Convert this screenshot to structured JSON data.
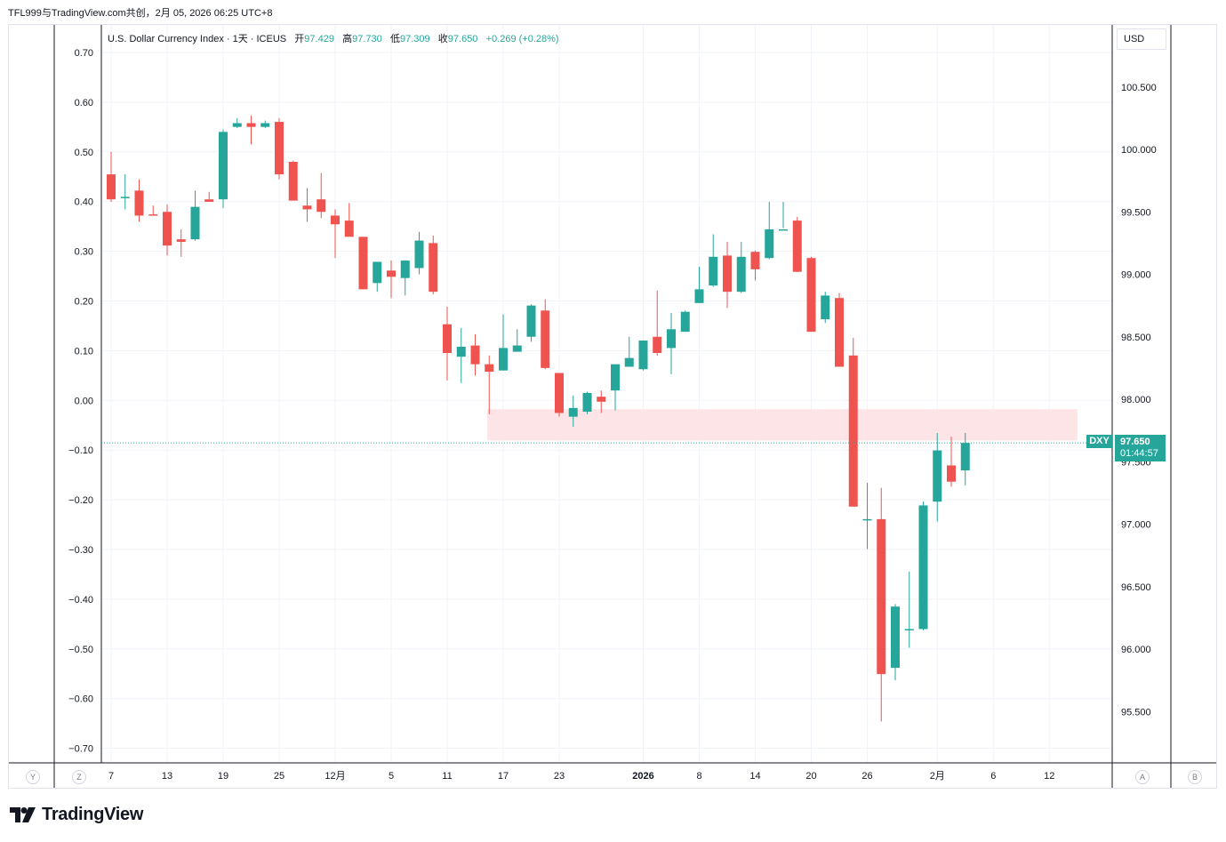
{
  "header": {
    "share_text": "TFL999与TradingView.com共创，2月 05, 2026 06:25 UTC+8"
  },
  "legend": {
    "title": "U.S. Dollar Currency Index · 1天 · ICEUS",
    "open_label": "开",
    "open": "97.429",
    "high_label": "高",
    "high": "97.730",
    "low_label": "低",
    "low": "97.309",
    "close_label": "收",
    "close": "97.650",
    "change": "+0.269 (+0.28%)"
  },
  "currency_button": "USD",
  "price_tag": {
    "symbol": "DXY",
    "price": "97.650",
    "countdown": "01:44:57"
  },
  "corner_buttons": {
    "y": "Y",
    "z": "Z",
    "a": "A",
    "b": "B"
  },
  "logo_text": "TradingView",
  "colors": {
    "up": "#26a69a",
    "down": "#ef5350",
    "zone": "#fde4e6",
    "grid": "#f0f3fa",
    "text": "#131722"
  },
  "chart_data": {
    "type": "candlestick",
    "symbol": "DXY",
    "title": "U.S. Dollar Currency Index",
    "interval": "1天",
    "exchange": "ICEUS",
    "right_axis": {
      "ticks": [
        "100.500",
        "100.000",
        "99.500",
        "99.000",
        "98.500",
        "98.000",
        "97.500",
        "97.000",
        "96.500",
        "96.000",
        "95.500"
      ],
      "ylim": [
        95.2,
        100.85
      ]
    },
    "left_axis": {
      "ticks": [
        "0.70",
        "0.60",
        "0.50",
        "0.40",
        "0.30",
        "0.20",
        "0.10",
        "0.00",
        "−0.10",
        "−0.20",
        "−0.30",
        "−0.40",
        "−0.50",
        "−0.60",
        "−0.70"
      ]
    },
    "x_ticks": [
      {
        "i": 0,
        "label": "7"
      },
      {
        "i": 4,
        "label": "13"
      },
      {
        "i": 8,
        "label": "19"
      },
      {
        "i": 12,
        "label": "25"
      },
      {
        "i": 16,
        "label": "12月"
      },
      {
        "i": 20,
        "label": "5"
      },
      {
        "i": 24,
        "label": "11"
      },
      {
        "i": 28,
        "label": "17"
      },
      {
        "i": 32,
        "label": "23"
      },
      {
        "i": 38,
        "label": "2026"
      },
      {
        "i": 42,
        "label": "8"
      },
      {
        "i": 46,
        "label": "14"
      },
      {
        "i": 50,
        "label": "20"
      },
      {
        "i": 54,
        "label": "26"
      },
      {
        "i": 59,
        "label": "2月"
      },
      {
        "i": 63,
        "label": "6"
      },
      {
        "i": 67,
        "label": "12"
      }
    ],
    "highlight_zone": {
      "from_i": 27,
      "to_i": 69,
      "low": 97.67,
      "high": 97.92
    },
    "last_price": 97.65,
    "candles": [
      [
        99.8,
        99.98,
        99.58,
        99.6
      ],
      [
        99.62,
        99.8,
        99.52,
        99.62
      ],
      [
        99.67,
        99.76,
        99.42,
        99.47
      ],
      [
        99.48,
        99.55,
        99.48,
        99.47
      ],
      [
        99.5,
        99.56,
        99.15,
        99.23
      ],
      [
        99.28,
        99.36,
        99.14,
        99.26
      ],
      [
        99.28,
        99.67,
        99.27,
        99.54
      ],
      [
        99.6,
        99.66,
        99.6,
        99.58
      ],
      [
        99.6,
        100.16,
        99.53,
        100.14
      ],
      [
        100.18,
        100.25,
        100.17,
        100.21
      ],
      [
        100.21,
        100.27,
        100.04,
        100.18
      ],
      [
        100.18,
        100.23,
        100.17,
        100.21
      ],
      [
        100.22,
        100.25,
        99.76,
        99.8
      ],
      [
        99.9,
        99.91,
        99.59,
        99.59
      ],
      [
        99.55,
        99.69,
        99.42,
        99.52
      ],
      [
        99.6,
        99.81,
        99.45,
        99.5
      ],
      [
        99.47,
        99.52,
        99.13,
        99.4
      ],
      [
        99.43,
        99.57,
        99.31,
        99.3
      ],
      [
        99.3,
        99.29,
        98.88,
        98.88
      ],
      [
        98.93,
        99.08,
        98.86,
        99.1
      ],
      [
        99.03,
        99.11,
        98.81,
        98.98
      ],
      [
        98.97,
        99.11,
        98.83,
        99.11
      ],
      [
        99.05,
        99.34,
        99.0,
        99.27
      ],
      [
        99.25,
        99.31,
        98.84,
        98.86
      ],
      [
        98.6,
        98.74,
        98.15,
        98.37
      ],
      [
        98.34,
        98.57,
        98.13,
        98.42
      ],
      [
        98.43,
        98.52,
        98.19,
        98.28
      ],
      [
        98.28,
        98.35,
        97.88,
        98.22
      ],
      [
        98.23,
        98.68,
        98.23,
        98.41
      ],
      [
        98.38,
        98.56,
        98.39,
        98.43
      ],
      [
        98.5,
        98.76,
        98.46,
        98.75
      ],
      [
        98.71,
        98.8,
        98.24,
        98.25
      ],
      [
        98.21,
        98.21,
        97.86,
        97.89
      ],
      [
        97.86,
        98.03,
        97.78,
        97.93
      ],
      [
        97.9,
        98.06,
        97.88,
        98.05
      ],
      [
        98.02,
        98.07,
        97.89,
        97.98
      ],
      [
        98.07,
        98.27,
        97.91,
        98.28
      ],
      [
        98.26,
        98.5,
        98.26,
        98.33
      ],
      [
        98.24,
        98.43,
        98.23,
        98.47
      ],
      [
        98.5,
        98.87,
        98.35,
        98.37
      ],
      [
        98.41,
        98.69,
        98.2,
        98.56
      ],
      [
        98.54,
        98.71,
        98.54,
        98.7
      ],
      [
        98.77,
        99.06,
        98.77,
        98.88
      ],
      [
        98.91,
        99.32,
        98.9,
        99.14
      ],
      [
        99.15,
        99.26,
        98.73,
        98.86
      ],
      [
        98.86,
        99.26,
        98.85,
        99.14
      ],
      [
        99.18,
        99.19,
        98.95,
        99.04
      ],
      [
        99.13,
        99.58,
        99.12,
        99.36
      ],
      [
        99.36,
        99.58,
        99.37,
        99.36
      ],
      [
        99.43,
        99.46,
        99.02,
        99.02
      ],
      [
        99.13,
        99.14,
        98.57,
        98.54
      ],
      [
        98.64,
        98.86,
        98.61,
        98.83
      ],
      [
        98.81,
        98.85,
        98.26,
        98.26
      ],
      [
        98.35,
        98.49,
        97.15,
        97.14
      ],
      [
        97.03,
        97.33,
        96.8,
        97.04
      ],
      [
        97.04,
        97.29,
        95.42,
        95.8
      ],
      [
        95.85,
        96.36,
        95.75,
        96.34
      ],
      [
        96.15,
        96.62,
        96.01,
        96.16
      ],
      [
        96.16,
        97.18,
        96.15,
        97.15
      ],
      [
        97.18,
        97.73,
        97.02,
        97.59
      ],
      [
        97.47,
        97.7,
        97.3,
        97.34
      ],
      [
        97.43,
        97.73,
        97.31,
        97.65
      ]
    ]
  }
}
